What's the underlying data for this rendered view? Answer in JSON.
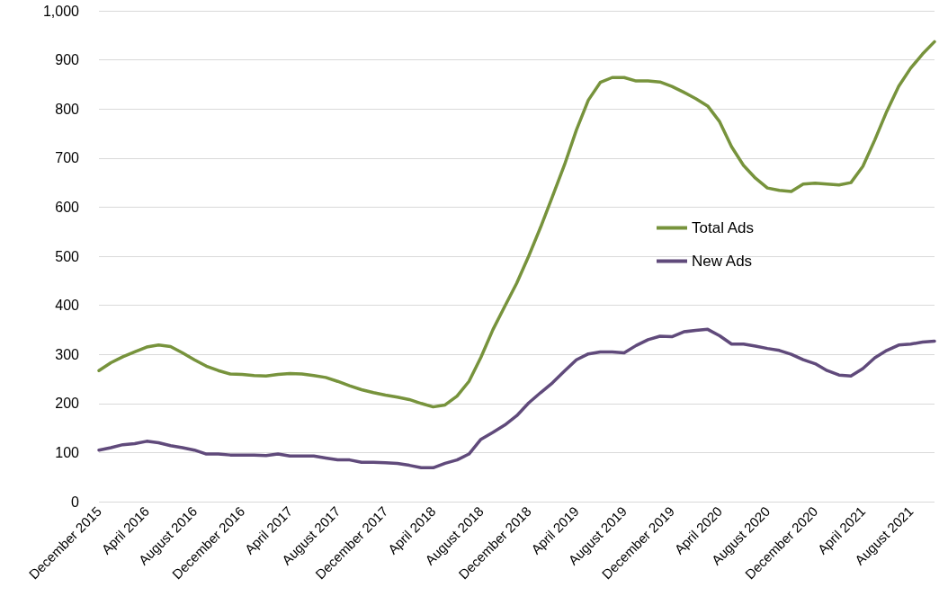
{
  "chart_data": {
    "type": "line",
    "categories": [
      "December 2015",
      null,
      null,
      null,
      "April 2016",
      null,
      null,
      null,
      "August 2016",
      null,
      null,
      null,
      "December 2016",
      null,
      null,
      null,
      "April 2017",
      null,
      null,
      null,
      "August 2017",
      null,
      null,
      null,
      "December 2017",
      null,
      null,
      null,
      "April 2018",
      null,
      null,
      null,
      "August 2018",
      null,
      null,
      null,
      "December 2018",
      null,
      null,
      null,
      "April 2019",
      null,
      null,
      null,
      "August 2019",
      null,
      null,
      null,
      "December 2019",
      null,
      null,
      null,
      "April 2020",
      null,
      null,
      null,
      "August 2020",
      null,
      null,
      null,
      "December 2020",
      null,
      null,
      null,
      "April 2021",
      null,
      null,
      null,
      "August 2021",
      null,
      null
    ],
    "series": [
      {
        "name": "Total Ads",
        "color": "#77933c",
        "values": [
          267,
          283,
          295,
          305,
          315,
          319,
          316,
          303,
          289,
          276,
          267,
          260,
          259,
          257,
          256,
          259,
          261,
          260,
          257,
          253,
          245,
          236,
          228,
          222,
          217,
          213,
          208,
          200,
          193,
          197,
          215,
          245,
          294,
          350,
          398,
          445,
          500,
          559,
          622,
          686,
          757,
          818,
          854,
          864,
          864,
          857,
          857,
          855,
          846,
          834,
          821,
          806,
          774,
          723,
          685,
          659,
          639,
          634,
          632,
          647,
          649,
          647,
          645,
          650,
          683,
          737,
          795,
          846,
          883,
          912,
          937
        ]
      },
      {
        "name": "New Ads",
        "color": "#604a7b",
        "values": [
          105,
          110,
          116,
          118,
          123,
          120,
          114,
          110,
          105,
          97,
          97,
          95,
          95,
          95,
          94,
          97,
          93,
          93,
          93,
          89,
          85,
          85,
          80,
          80,
          79,
          78,
          74,
          69,
          69,
          78,
          85,
          97,
          127,
          141,
          156,
          175,
          201,
          222,
          242,
          266,
          289,
          301,
          305,
          305,
          303,
          318,
          330,
          337,
          336,
          346,
          349,
          351,
          338,
          321,
          321,
          317,
          312,
          308,
          300,
          289,
          281,
          267,
          258,
          256,
          271,
          293,
          308,
          319,
          321,
          325,
          327
        ]
      }
    ],
    "ylim": [
      0,
      1000
    ],
    "yticks": [
      0,
      100,
      200,
      300,
      400,
      500,
      600,
      700,
      800,
      900,
      {
        "value": 1000,
        "label": "1,000"
      }
    ],
    "grid": "y",
    "legend": "center right",
    "marker": "none",
    "line_style": "solid"
  }
}
